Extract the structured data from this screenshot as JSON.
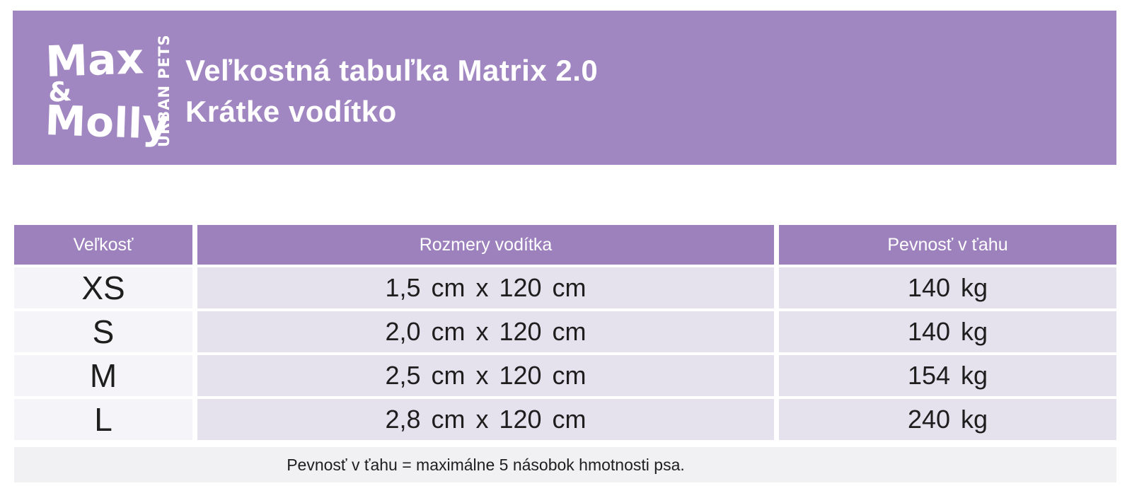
{
  "banner": {
    "bg_color": "#a187c1",
    "logo": {
      "word1": "Max",
      "amp": "&",
      "word2": "Molly",
      "tagline": "URBAN PETS"
    },
    "title_line1": "Veľkostná tabuľka Matrix 2.0",
    "title_line2": "Krátke vodítko"
  },
  "table": {
    "header_bg": "#9c81bc",
    "row_bg_light": "#f5f4f9",
    "row_bg_lavender": "#e5e2ee",
    "columns": {
      "size": "Veľkosť",
      "dimensions": "Rozmery vodítka",
      "strength": "Pevnosť v ťahu"
    },
    "rows": [
      {
        "size": "XS",
        "dimensions": "1,5 cm x 120 cm",
        "strength": "140 kg"
      },
      {
        "size": "S",
        "dimensions": "2,0 cm x 120 cm",
        "strength": "140 kg"
      },
      {
        "size": "M",
        "dimensions": "2,5 cm x 120 cm",
        "strength": "154 kg"
      },
      {
        "size": "L",
        "dimensions": "2,8 cm x 120 cm",
        "strength": "240 kg"
      }
    ]
  },
  "footer": {
    "note": "Pevnosť v ťahu = maximálne 5 násobok hmotnosti psa."
  }
}
